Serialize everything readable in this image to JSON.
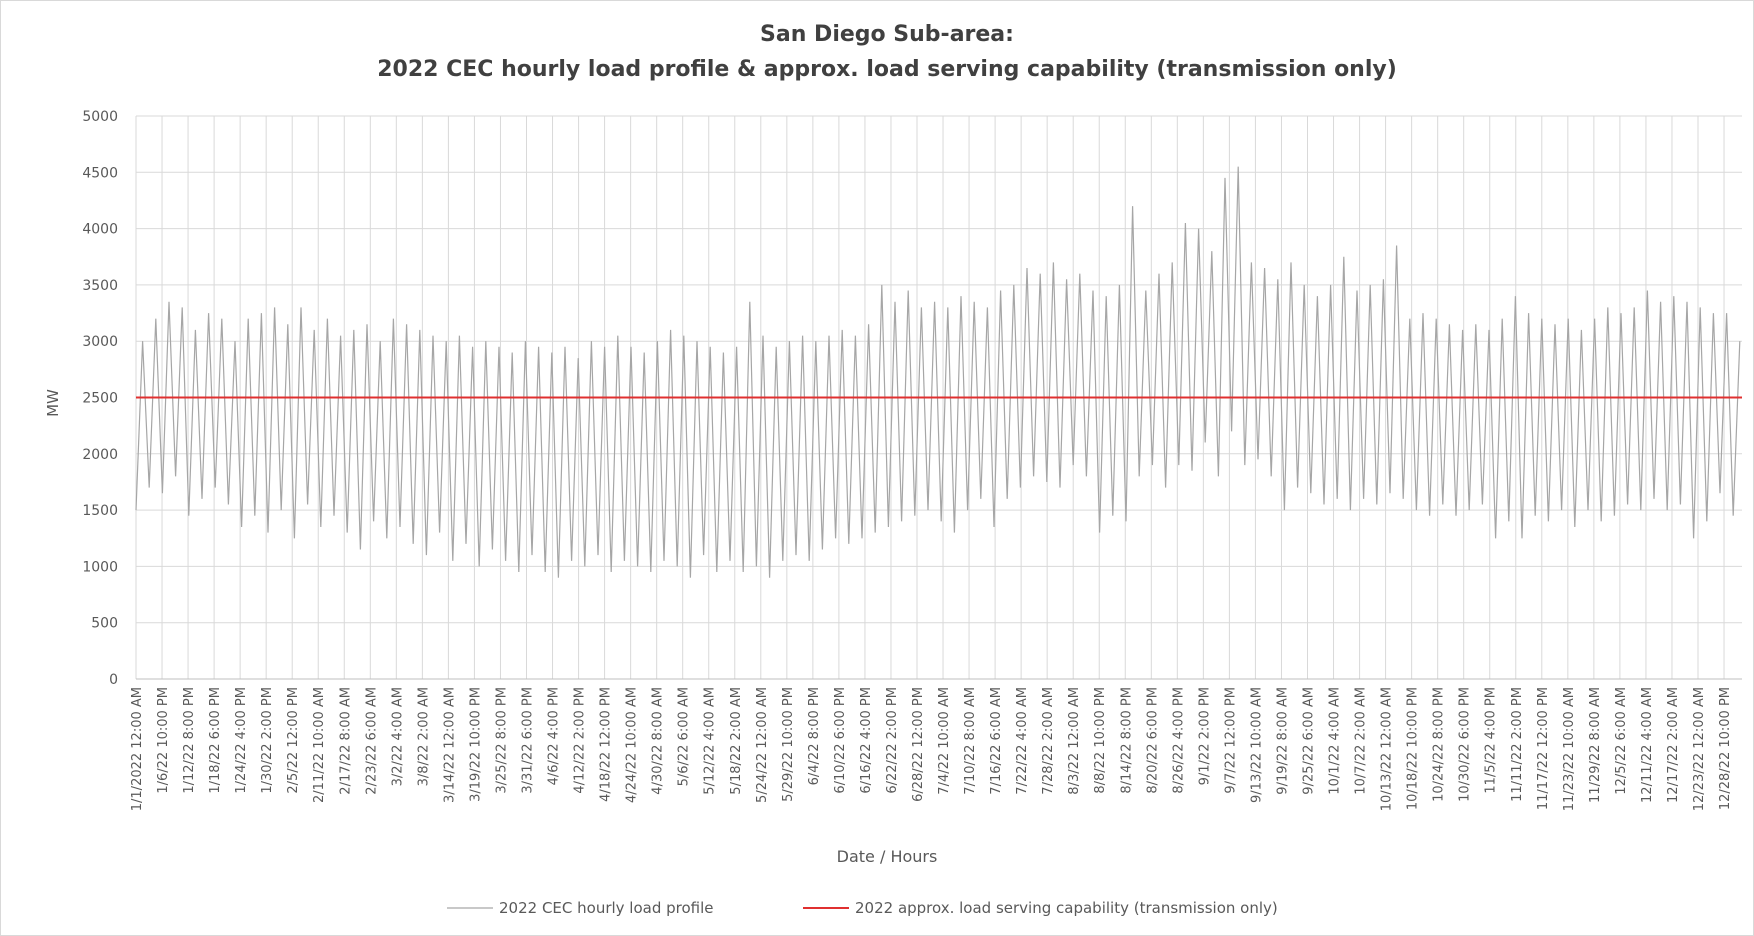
{
  "chart_data": {
    "type": "line",
    "title": [
      "San Diego Sub-area:",
      "2022 CEC hourly load profile & approx. load serving capability (transmission only)"
    ],
    "xlabel": "Date / Hours",
    "ylabel": "MW",
    "xlim": [
      0,
      8760
    ],
    "ylim": [
      0,
      5000
    ],
    "yticks": [
      0,
      500,
      1000,
      1500,
      2000,
      2500,
      3000,
      3500,
      4000,
      4500,
      5000
    ],
    "xticks": [
      {
        "value": 0,
        "label": "1/1/2022 12:00 AM"
      },
      {
        "value": 142,
        "label": "1/6/22 10:00 PM"
      },
      {
        "value": 284,
        "label": "1/12/22 8:00 PM"
      },
      {
        "value": 426,
        "label": "1/18/22 6:00 PM"
      },
      {
        "value": 568,
        "label": "1/24/22 4:00 PM"
      },
      {
        "value": 710,
        "label": "1/30/22 2:00 PM"
      },
      {
        "value": 852,
        "label": "2/5/22 12:00 PM"
      },
      {
        "value": 994,
        "label": "2/11/22 10:00 AM"
      },
      {
        "value": 1136,
        "label": "2/17/22 8:00 AM"
      },
      {
        "value": 1278,
        "label": "2/23/22 6:00 AM"
      },
      {
        "value": 1420,
        "label": "3/2/22 4:00 AM"
      },
      {
        "value": 1562,
        "label": "3/8/22 2:00 AM"
      },
      {
        "value": 1704,
        "label": "3/14/22 12:00 AM"
      },
      {
        "value": 1846,
        "label": "3/19/22 10:00 PM"
      },
      {
        "value": 1988,
        "label": "3/25/22 8:00 PM"
      },
      {
        "value": 2130,
        "label": "3/31/22 6:00 PM"
      },
      {
        "value": 2272,
        "label": "4/6/22 4:00 PM"
      },
      {
        "value": 2414,
        "label": "4/12/22 2:00 PM"
      },
      {
        "value": 2556,
        "label": "4/18/22 12:00 PM"
      },
      {
        "value": 2698,
        "label": "4/24/22 10:00 AM"
      },
      {
        "value": 2840,
        "label": "4/30/22 8:00 AM"
      },
      {
        "value": 2982,
        "label": "5/6/22 6:00 AM"
      },
      {
        "value": 3124,
        "label": "5/12/22 4:00 AM"
      },
      {
        "value": 3266,
        "label": "5/18/22 2:00 AM"
      },
      {
        "value": 3408,
        "label": "5/24/22 12:00 AM"
      },
      {
        "value": 3550,
        "label": "5/29/22 10:00 PM"
      },
      {
        "value": 3692,
        "label": "6/4/22 8:00 PM"
      },
      {
        "value": 3834,
        "label": "6/10/22 6:00 PM"
      },
      {
        "value": 3976,
        "label": "6/16/22 4:00 PM"
      },
      {
        "value": 4118,
        "label": "6/22/22 2:00 PM"
      },
      {
        "value": 4260,
        "label": "6/28/22 12:00 PM"
      },
      {
        "value": 4402,
        "label": "7/4/22 10:00 AM"
      },
      {
        "value": 4544,
        "label": "7/10/22 8:00 AM"
      },
      {
        "value": 4686,
        "label": "7/16/22 6:00 AM"
      },
      {
        "value": 4828,
        "label": "7/22/22 4:00 AM"
      },
      {
        "value": 4970,
        "label": "7/28/22 2:00 AM"
      },
      {
        "value": 5112,
        "label": "8/3/22 12:00 AM"
      },
      {
        "value": 5254,
        "label": "8/8/22 10:00 PM"
      },
      {
        "value": 5396,
        "label": "8/14/22 8:00 PM"
      },
      {
        "value": 5538,
        "label": "8/20/22 6:00 PM"
      },
      {
        "value": 5680,
        "label": "8/26/22 4:00 PM"
      },
      {
        "value": 5822,
        "label": "9/1/22 2:00 PM"
      },
      {
        "value": 5964,
        "label": "9/7/22 12:00 PM"
      },
      {
        "value": 6106,
        "label": "9/13/22 10:00 AM"
      },
      {
        "value": 6248,
        "label": "9/19/22 8:00 AM"
      },
      {
        "value": 6390,
        "label": "9/25/22 6:00 AM"
      },
      {
        "value": 6532,
        "label": "10/1/22 4:00 AM"
      },
      {
        "value": 6674,
        "label": "10/7/22 2:00 AM"
      },
      {
        "value": 6816,
        "label": "10/13/22 12:00 AM"
      },
      {
        "value": 6958,
        "label": "10/18/22 10:00 PM"
      },
      {
        "value": 7100,
        "label": "10/24/22 8:00 PM"
      },
      {
        "value": 7242,
        "label": "10/30/22 6:00 PM"
      },
      {
        "value": 7384,
        "label": "11/5/22 4:00 PM"
      },
      {
        "value": 7526,
        "label": "11/11/22 2:00 PM"
      },
      {
        "value": 7668,
        "label": "11/17/22 12:00 PM"
      },
      {
        "value": 7810,
        "label": "11/23/22 10:00 AM"
      },
      {
        "value": 7952,
        "label": "11/29/22 8:00 AM"
      },
      {
        "value": 8094,
        "label": "12/5/22 6:00 AM"
      },
      {
        "value": 8236,
        "label": "12/11/22 4:00 AM"
      },
      {
        "value": 8378,
        "label": "12/17/22 2:00 AM"
      },
      {
        "value": 8520,
        "label": "12/23/22 12:00 AM"
      },
      {
        "value": 8662,
        "label": "12/28/22 10:00 PM"
      }
    ],
    "grid": true,
    "series": [
      {
        "name": "2022 CEC hourly load profile",
        "color": "#a6a6a6",
        "x": [
          0,
          36,
          72,
          108,
          144,
          180,
          216,
          252,
          288,
          324,
          360,
          396,
          432,
          468,
          504,
          540,
          576,
          612,
          648,
          684,
          720,
          756,
          792,
          828,
          864,
          900,
          936,
          972,
          1008,
          1044,
          1080,
          1116,
          1152,
          1188,
          1224,
          1260,
          1296,
          1332,
          1368,
          1404,
          1440,
          1476,
          1512,
          1548,
          1584,
          1620,
          1656,
          1692,
          1728,
          1764,
          1800,
          1836,
          1872,
          1908,
          1944,
          1980,
          2016,
          2052,
          2088,
          2124,
          2160,
          2196,
          2232,
          2268,
          2304,
          2340,
          2376,
          2412,
          2448,
          2484,
          2520,
          2556,
          2592,
          2628,
          2664,
          2700,
          2736,
          2772,
          2808,
          2844,
          2880,
          2916,
          2952,
          2988,
          3024,
          3060,
          3096,
          3132,
          3168,
          3204,
          3240,
          3276,
          3312,
          3348,
          3384,
          3420,
          3456,
          3492,
          3528,
          3564,
          3600,
          3636,
          3672,
          3708,
          3744,
          3780,
          3816,
          3852,
          3888,
          3924,
          3960,
          3996,
          4032,
          4068,
          4104,
          4140,
          4176,
          4212,
          4248,
          4284,
          4320,
          4356,
          4392,
          4428,
          4464,
          4500,
          4536,
          4572,
          4608,
          4644,
          4680,
          4716,
          4752,
          4788,
          4824,
          4860,
          4896,
          4932,
          4968,
          5004,
          5040,
          5076,
          5112,
          5148,
          5184,
          5220,
          5256,
          5292,
          5328,
          5364,
          5400,
          5436,
          5472,
          5508,
          5544,
          5580,
          5616,
          5652,
          5688,
          5724,
          5760,
          5796,
          5832,
          5868,
          5904,
          5940,
          5976,
          6012,
          6048,
          6084,
          6120,
          6156,
          6192,
          6228,
          6264,
          6300,
          6336,
          6372,
          6408,
          6444,
          6480,
          6516,
          6552,
          6588,
          6624,
          6660,
          6696,
          6732,
          6768,
          6804,
          6840,
          6876,
          6912,
          6948,
          6984,
          7020,
          7056,
          7092,
          7128,
          7164,
          7200,
          7236,
          7272,
          7308,
          7344,
          7380,
          7416,
          7452,
          7488,
          7524,
          7560,
          7596,
          7632,
          7668,
          7704,
          7740,
          7776,
          7812,
          7848,
          7884,
          7920,
          7956,
          7992,
          8028,
          8064,
          8100,
          8136,
          8172,
          8208,
          8244,
          8280,
          8316,
          8352,
          8388,
          8424,
          8460,
          8496,
          8532,
          8568,
          8604,
          8640,
          8676,
          8712,
          8748
        ],
        "values": [
          1500,
          3000,
          1700,
          3200,
          1650,
          3350,
          1800,
          3300,
          1450,
          3100,
          1600,
          3250,
          1700,
          3200,
          1550,
          3000,
          1350,
          3200,
          1450,
          3250,
          1300,
          3300,
          1500,
          3150,
          1250,
          3300,
          1550,
          3100,
          1350,
          3200,
          1450,
          3050,
          1300,
          3100,
          1150,
          3150,
          1400,
          3000,
          1250,
          3200,
          1350,
          3150,
          1200,
          3100,
          1100,
          3050,
          1300,
          3000,
          1050,
          3050,
          1200,
          2950,
          1000,
          3000,
          1150,
          2950,
          1050,
          2900,
          950,
          3000,
          1100,
          2950,
          950,
          2900,
          900,
          2950,
          1050,
          2850,
          1000,
          3000,
          1100,
          2950,
          950,
          3050,
          1050,
          2950,
          1000,
          2900,
          950,
          3000,
          1050,
          3100,
          1000,
          3050,
          900,
          3000,
          1100,
          2950,
          950,
          2900,
          1050,
          2950,
          950,
          3350,
          1000,
          3050,
          900,
          2950,
          1050,
          3000,
          1100,
          3050,
          1050,
          3000,
          1150,
          3050,
          1250,
          3100,
          1200,
          3050,
          1250,
          3150,
          1300,
          3500,
          1350,
          3350,
          1400,
          3450,
          1450,
          3300,
          1500,
          3350,
          1400,
          3300,
          1300,
          3400,
          1500,
          3350,
          1600,
          3300,
          1350,
          3450,
          1600,
          3500,
          1700,
          3650,
          1800,
          3600,
          1750,
          3700,
          1700,
          3550,
          1900,
          3600,
          1800,
          3450,
          1300,
          3400,
          1450,
          3500,
          1400,
          4200,
          1800,
          3450,
          1900,
          3600,
          1700,
          3700,
          1900,
          4050,
          1850,
          4000,
          2100,
          3800,
          1800,
          4450,
          2200,
          4550,
          1900,
          3700,
          1950,
          3650,
          1800,
          3550,
          1500,
          3700,
          1700,
          3500,
          1650,
          3400,
          1550,
          3500,
          1600,
          3750,
          1500,
          3450,
          1600,
          3500,
          1550,
          3550,
          1650,
          3850,
          1600,
          3200,
          1500,
          3250,
          1450,
          3200,
          1550,
          3150,
          1450,
          3100,
          1500,
          3150,
          1550,
          3100,
          1250,
          3200,
          1400,
          3400,
          1250,
          3250,
          1450,
          3200,
          1400,
          3150,
          1500,
          3200,
          1350,
          3100,
          1500,
          3200,
          1400,
          3300,
          1450,
          3250,
          1550,
          3300,
          1500,
          3450,
          1600,
          3350,
          1500,
          3400,
          1550,
          3350,
          1250,
          3300,
          1400,
          3250,
          1650,
          3250,
          1450,
          3000
        ]
      }
    ],
    "hlines": [
      {
        "name": "2022 approx. load serving capability (transmission only)",
        "color": "#e03030",
        "value": 2500
      }
    ]
  }
}
